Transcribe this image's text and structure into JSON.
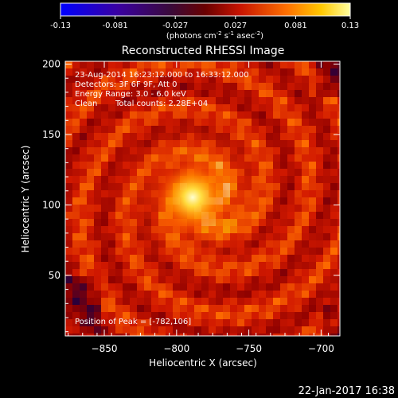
{
  "colorbar": {
    "ticks": [
      "-0.13",
      "-0.081",
      "-0.027",
      "0.027",
      "0.081",
      "0.13"
    ],
    "vmin": -0.13,
    "vmax": 0.13,
    "units_main": "(photons cm",
    "units_exp1": "-2",
    "units_mid": " s",
    "units_exp2": "-1",
    "units_end": " asec",
    "units_exp3": "-2",
    "units_close": ")"
  },
  "chart_data": {
    "type": "heatmap",
    "title": "Reconstructed RHESSI Image",
    "xlabel": "Heliocentric X (arcsec)",
    "ylabel": "Heliocentric Y (arcsec)",
    "xlim": [
      -877,
      -687
    ],
    "ylim": [
      7,
      202
    ],
    "xticks": [
      -850,
      -800,
      -750,
      -700
    ],
    "yticks": [
      50,
      100,
      150,
      200
    ],
    "xtick_labels": [
      "−850",
      "−800",
      "−750",
      "−700"
    ],
    "ytick_labels": [
      "50",
      "100",
      "150",
      "200"
    ],
    "peak": [
      -782,
      106
    ],
    "colormap": "rhessi-red-temperature",
    "annotations": {
      "time_range": "23-Aug-2014 16:23:12.000 to 16:33:12.000",
      "detectors": "Detectors: 3F 6F 9F, Att 0",
      "energy": "Energy Range: 3.0 - 6.0 keV",
      "method": "Clean",
      "counts": "Total counts: 2.28E+04",
      "peak_label": "Position of Peak = [-782,106]"
    }
  },
  "footer": {
    "date": "22-Jan-2017 16:38"
  }
}
